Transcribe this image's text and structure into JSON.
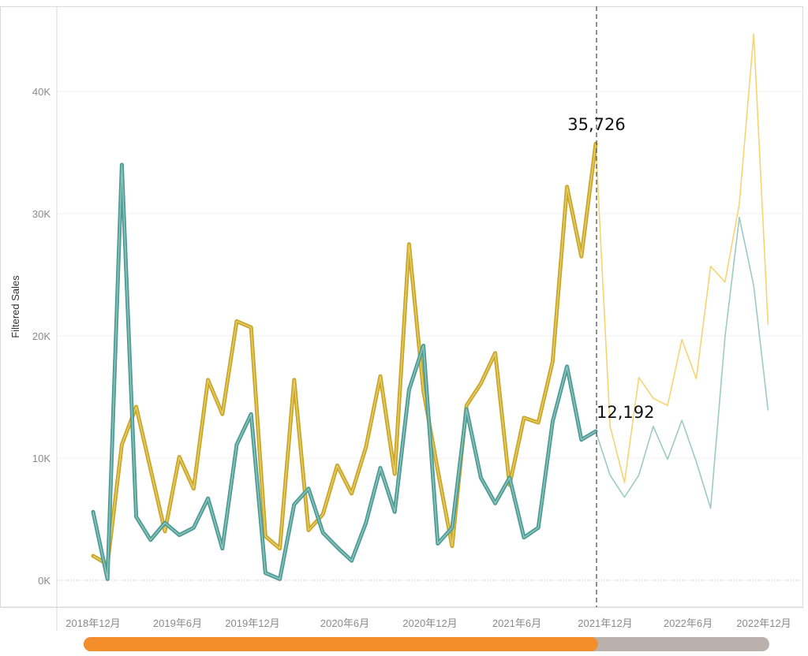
{
  "chart_data": {
    "type": "line",
    "title": "",
    "xlabel": "",
    "ylabel": "Filtered Sales",
    "ylim": [
      0,
      46000
    ],
    "y_ticks": [
      "0K",
      "10K",
      "20K",
      "30K",
      "40K"
    ],
    "y_tick_values": [
      0,
      10000,
      20000,
      30000,
      40000
    ],
    "x_tick_labels": [
      "2018年12月",
      "2019年6月",
      "2019年12月",
      "2020年6月",
      "2020年12月",
      "2021年6月",
      "2021年12月",
      "2022年6月",
      "2022年12月"
    ],
    "x": [
      "2019-01",
      "2019-02",
      "2019-03",
      "2019-04",
      "2019-05",
      "2019-06",
      "2019-07",
      "2019-08",
      "2019-09",
      "2019-10",
      "2019-11",
      "2019-12",
      "2020-01",
      "2020-02",
      "2020-03",
      "2020-04",
      "2020-05",
      "2020-06",
      "2020-07",
      "2020-08",
      "2020-09",
      "2020-10",
      "2020-11",
      "2020-12",
      "2021-01",
      "2021-02",
      "2021-03",
      "2021-04",
      "2021-05",
      "2021-06",
      "2021-07",
      "2021-08",
      "2021-09",
      "2021-10",
      "2021-11",
      "2021-12",
      "2022-01",
      "2022-02",
      "2022-03",
      "2022-04",
      "2022-05",
      "2022-06",
      "2022-07",
      "2022-08",
      "2022-09",
      "2022-10",
      "2022-11",
      "2022-12"
    ],
    "highlight_end_index": 35,
    "reference_line": "2021年12月",
    "series": [
      {
        "name": "series-gold",
        "color": "#c9a62c",
        "faded_color": "#f6d472",
        "values": [
          2000,
          1300,
          11100,
          14200,
          9100,
          4000,
          10100,
          7500,
          16400,
          13600,
          21200,
          20700,
          3600,
          2600,
          16400,
          4100,
          5400,
          9400,
          7100,
          10900,
          16700,
          8700,
          27500,
          15500,
          9000,
          2800,
          14300,
          16100,
          18600,
          7800,
          13300,
          12900,
          17900,
          32200,
          26500,
          35726,
          12600,
          8000,
          16600,
          14900,
          14300,
          19700,
          16500,
          25700,
          24400,
          30800,
          44700,
          20900
        ]
      },
      {
        "name": "series-teal",
        "color": "#4f9c95",
        "faded_color": "#9ccac5",
        "values": [
          5600,
          100,
          34000,
          5200,
          3300,
          4700,
          3700,
          4300,
          6700,
          2600,
          11100,
          13600,
          600,
          100,
          6200,
          7500,
          3900,
          2700,
          1600,
          4700,
          9200,
          5600,
          15600,
          19200,
          3000,
          4300,
          14000,
          8400,
          6300,
          8400,
          3500,
          4300,
          13000,
          17500,
          11500,
          12192,
          8600,
          6800,
          8600,
          12600,
          9900,
          13100,
          9700,
          5900,
          19900,
          29700,
          24100,
          13900
        ]
      }
    ],
    "annotations": [
      "35,726",
      "12,192"
    ],
    "grid": true,
    "legend": "none"
  },
  "scrollbar": {
    "position_fraction": 0,
    "visible_fraction": 0.75,
    "thumb_color": "#f28e2b",
    "track_color": "#bab0ac"
  }
}
